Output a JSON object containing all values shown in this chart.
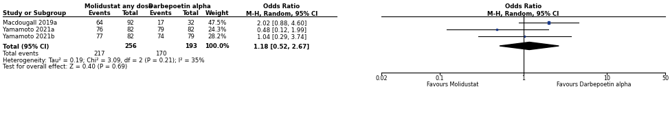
{
  "studies": [
    "Macdougall 2019a",
    "Yamamoto 2021a",
    "Yamamoto 2021b"
  ],
  "mol_events": [
    64,
    76,
    77
  ],
  "mol_total": [
    92,
    82,
    82
  ],
  "darb_events": [
    17,
    79,
    74
  ],
  "darb_total": [
    32,
    82,
    79
  ],
  "weights": [
    "47.5%",
    "24.3%",
    "28.2%"
  ],
  "or": [
    2.02,
    0.48,
    1.04
  ],
  "ci_low": [
    0.88,
    0.12,
    0.29
  ],
  "ci_high": [
    4.6,
    1.99,
    3.74
  ],
  "or_text": [
    "2.02 [0.88, 4.60]",
    "0.48 [0.12, 1.99]",
    "1.04 [0.29, 3.74]"
  ],
  "total_mol_total": 256,
  "total_darb_total": 193,
  "total_mol_events": 217,
  "total_darb_events": 170,
  "total_or": 1.18,
  "total_ci_low": 0.52,
  "total_ci_high": 2.67,
  "total_or_text": "1.18 [0.52, 2.67]",
  "total_weight": "100.0%",
  "heterogeneity_text": "Heterogeneity: Tau² = 0.19; Chi² = 3.09, df = 2 (P = 0.21); I² = 35%",
  "overall_effect_text": "Test for overall effect: Z = 0.40 (P = 0.69)",
  "square_color": "#1a3a8a",
  "axis_ticks": [
    0.02,
    0.1,
    1,
    10,
    50
  ],
  "axis_tick_labels": [
    "0.02",
    "0.1",
    "1",
    "10",
    "50"
  ],
  "favours_left": "Favours Molidustat",
  "favours_right": "Favours Darbepoetin alpha",
  "forest_log_min": -1.699,
  "forest_log_max": 1.699
}
